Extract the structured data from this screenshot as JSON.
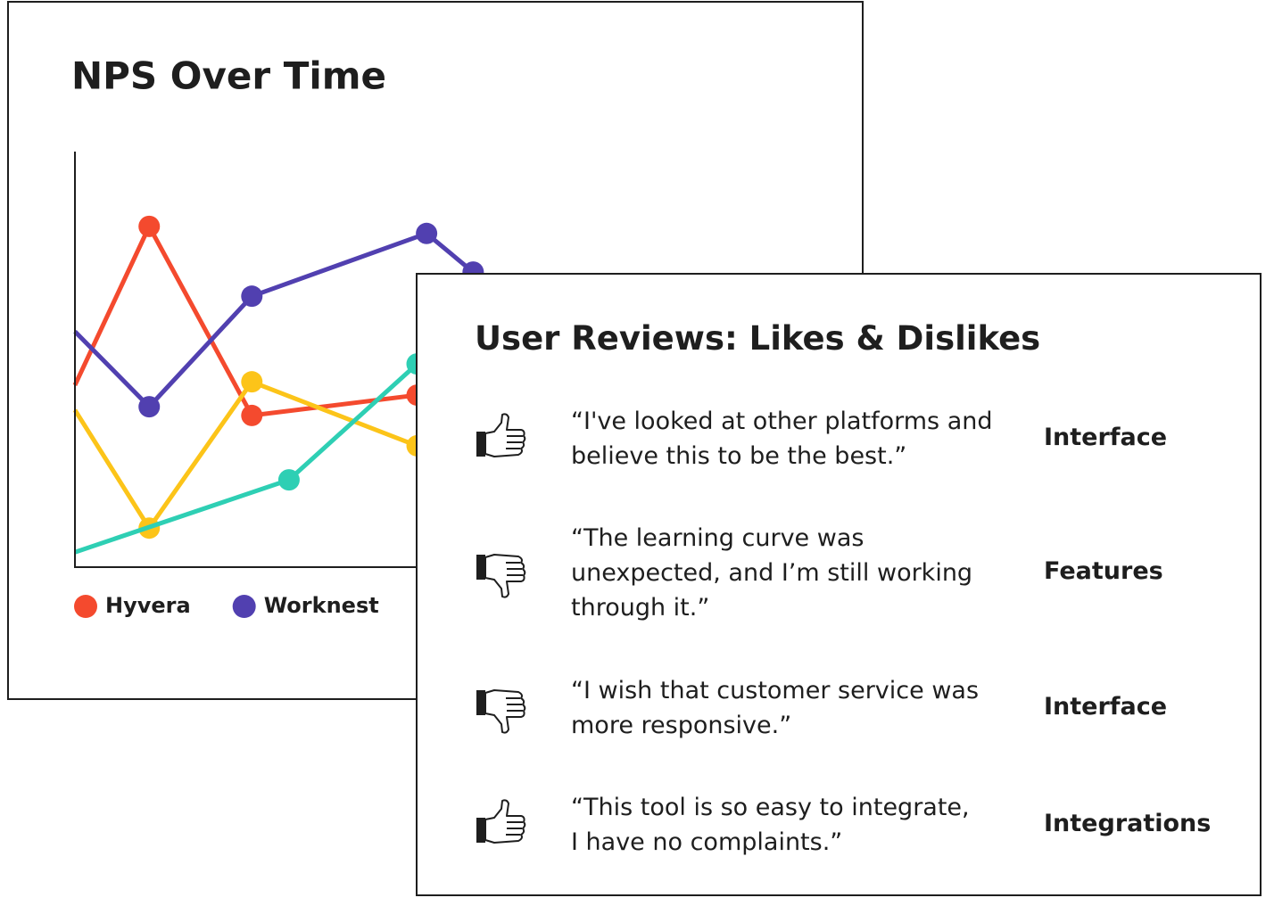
{
  "chart_data": {
    "type": "line",
    "title": "NPS Over Time",
    "xlim": [
      0,
      100
    ],
    "ylim": [
      0,
      100
    ],
    "series": [
      {
        "name": "Hyvera",
        "color": "#f44a2e",
        "x": [
          0,
          10.2,
          24.3,
          47
        ],
        "values": [
          43.8,
          82,
          36.5,
          41.4
        ]
      },
      {
        "name": "Worknest",
        "color": "#5140b0",
        "x": [
          0,
          10.2,
          24.3,
          48.3,
          54.7
        ],
        "values": [
          56.7,
          38.6,
          65.2,
          80.3,
          71
        ]
      },
      {
        "color": "#fcc419",
        "x": [
          0,
          10.2,
          24.3,
          47
        ],
        "values": [
          37.8,
          9.4,
          44.6,
          29.2
        ]
      },
      {
        "color": "#2ecfb4",
        "x": [
          0,
          29.4,
          47
        ],
        "values": [
          3.6,
          21,
          48.9
        ]
      }
    ]
  },
  "reviews": {
    "title": "User Reviews: Likes & Dislikes",
    "items": [
      {
        "sentiment": "like",
        "quote_lines": [
          "“I've looked at other platforms and",
          "believe this to be the best.”"
        ],
        "tag": "Interface"
      },
      {
        "sentiment": "dislike",
        "quote_lines": [
          "“The learning curve was",
          "unexpected, and I’m still working",
          "through it.”"
        ],
        "tag": "Features"
      },
      {
        "sentiment": "dislike",
        "quote_lines": [
          "“I wish that customer service was",
          "more responsive.”"
        ],
        "tag": "Interface"
      },
      {
        "sentiment": "like",
        "quote_lines": [
          "“This tool is so easy to integrate,",
          "I have no complaints.”"
        ],
        "tag": "Integrations"
      }
    ]
  }
}
